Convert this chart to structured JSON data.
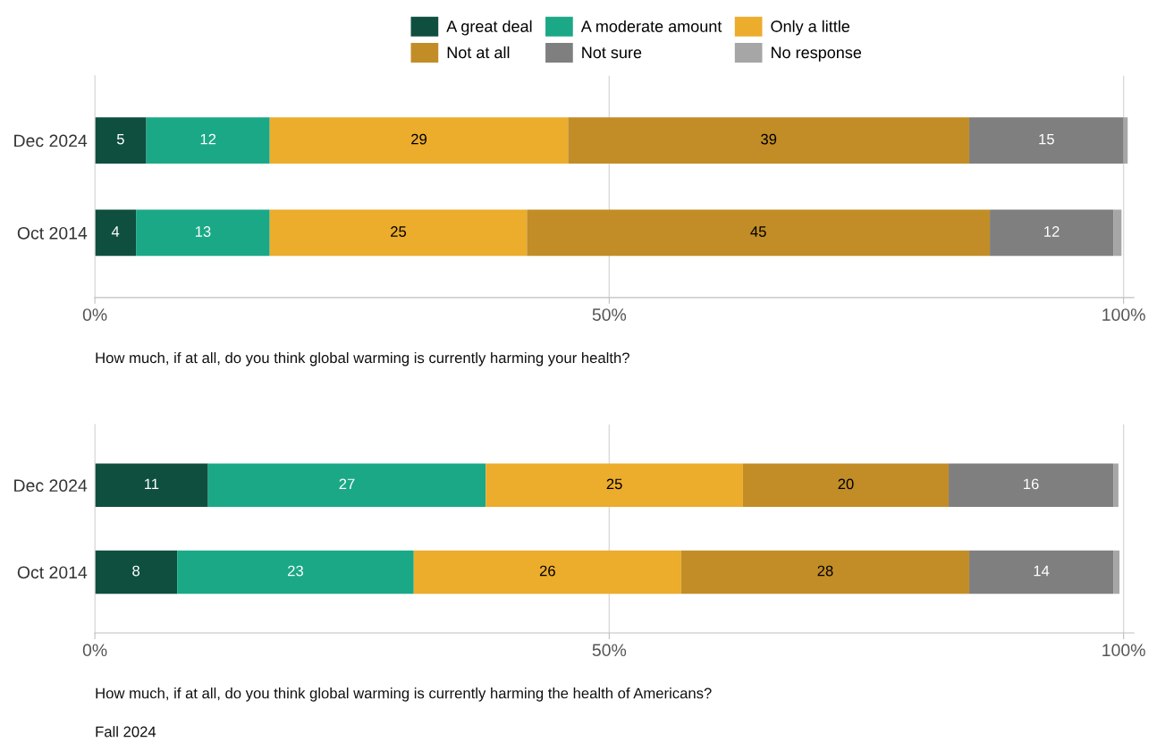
{
  "chart_data": [
    {
      "type": "bar",
      "orientation": "horizontal",
      "stacked": true,
      "categories": [
        "Dec 2024",
        "Oct 2014"
      ],
      "series": [
        {
          "name": "A great deal",
          "color": "#0f4f3f",
          "values": [
            5,
            4
          ],
          "value_labels": [
            "5",
            "4"
          ]
        },
        {
          "name": "A moderate amount",
          "color": "#1ba886",
          "values": [
            12,
            13
          ],
          "value_labels": [
            "12",
            "13"
          ]
        },
        {
          "name": "Only a little",
          "color": "#ecac2c",
          "values": [
            29,
            25
          ],
          "value_labels": [
            "29",
            "25"
          ]
        },
        {
          "name": "Not at all",
          "color": "#c28d26",
          "values": [
            39,
            45
          ],
          "value_labels": [
            "39",
            "45"
          ]
        },
        {
          "name": "Not sure",
          "color": "#7f7f7f",
          "values": [
            15,
            12
          ],
          "value_labels": [
            "15",
            "12"
          ]
        },
        {
          "name": "No response",
          "color": "#a6a6a6",
          "values": [
            0.4,
            0.8
          ],
          "value_labels": [
            null,
            null
          ]
        }
      ],
      "xlim": [
        0,
        101
      ],
      "xticks": [
        {
          "value": 0,
          "label": "0%"
        },
        {
          "value": 50,
          "label": "50%"
        },
        {
          "value": 100,
          "label": "100%"
        }
      ],
      "grid": "x",
      "legend": "top",
      "annotations": [
        "How much, if at all, do you think global warming is currently harming your health?"
      ]
    },
    {
      "type": "bar",
      "orientation": "horizontal",
      "stacked": true,
      "categories": [
        "Dec 2024",
        "Oct 2014"
      ],
      "series": [
        {
          "color": "#0f4f3f",
          "values": [
            11,
            8
          ],
          "value_labels": [
            "11",
            "8"
          ]
        },
        {
          "color": "#1ba886",
          "values": [
            27,
            23
          ],
          "value_labels": [
            "27",
            "23"
          ]
        },
        {
          "color": "#ecac2c",
          "values": [
            25,
            26
          ],
          "value_labels": [
            "25",
            "26"
          ]
        },
        {
          "color": "#c28d26",
          "values": [
            20,
            28
          ],
          "value_labels": [
            "20",
            "28"
          ]
        },
        {
          "color": "#7f7f7f",
          "values": [
            16,
            14
          ],
          "value_labels": [
            "16",
            "14"
          ]
        },
        {
          "color": "#a6a6a6",
          "values": [
            0.5,
            0.6
          ],
          "value_labels": [
            null,
            null
          ]
        }
      ],
      "xlim": [
        0,
        101
      ],
      "xticks": [
        {
          "value": 0,
          "label": "0%"
        },
        {
          "value": 50,
          "label": "50%"
        },
        {
          "value": 100,
          "label": "100%"
        }
      ],
      "grid": "x",
      "legend": false,
      "annotations": [
        "How much, if at all, do you think global warming is currently harming the health of Americans?",
        "Fall 2024"
      ]
    }
  ]
}
